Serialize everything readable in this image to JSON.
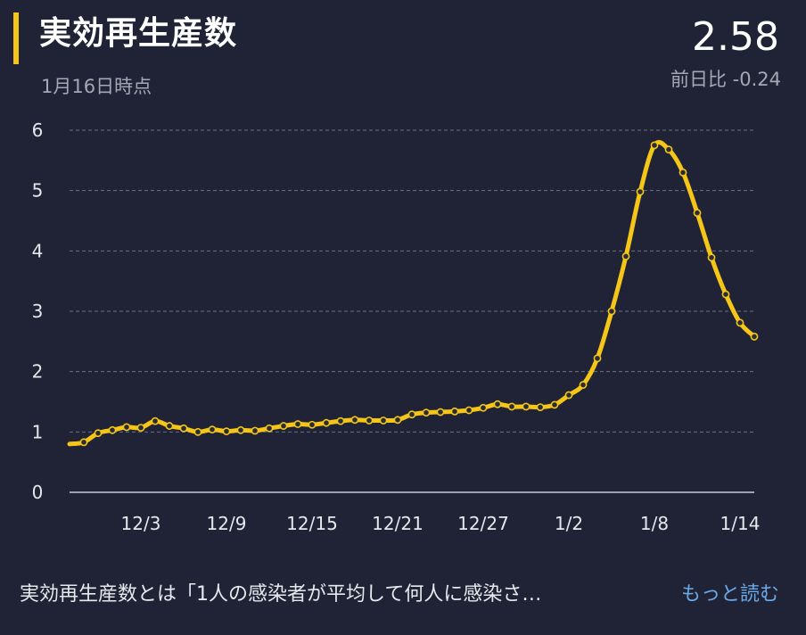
{
  "header": {
    "title": "実効再生産数",
    "as_of": "1月16日時点",
    "value": "2.58",
    "delta": "前日比 -0.24"
  },
  "footer": {
    "description": "実効再生産数とは「1人の感染者が平均して何人に感染さ…",
    "more_link": "もっと読む"
  },
  "colors": {
    "background": "#1f2335",
    "accent": "#f5c518",
    "grid": "#6b7080",
    "link": "#6aa8e8"
  },
  "chart_data": {
    "type": "line",
    "y_ticks": [
      "0",
      "1",
      "2",
      "3",
      "4",
      "5",
      "6"
    ],
    "ylim": [
      0,
      6
    ],
    "x_tick_labels": [
      "12/3",
      "12/9",
      "12/15",
      "12/21",
      "12/27",
      "1/2",
      "1/8",
      "1/14"
    ],
    "x_tick_index": [
      5,
      11,
      17,
      23,
      29,
      35,
      41,
      47
    ],
    "grid": true,
    "series": [
      {
        "values": [
          0.8,
          0.83,
          0.98,
          1.03,
          1.08,
          1.07,
          1.18,
          1.1,
          1.06,
          1.0,
          1.04,
          1.01,
          1.03,
          1.02,
          1.06,
          1.1,
          1.13,
          1.12,
          1.15,
          1.18,
          1.2,
          1.19,
          1.19,
          1.2,
          1.29,
          1.32,
          1.33,
          1.34,
          1.36,
          1.4,
          1.46,
          1.42,
          1.42,
          1.41,
          1.45,
          1.61,
          1.78,
          2.22,
          3.0,
          3.91,
          4.98,
          5.75,
          5.68,
          5.3,
          4.63,
          3.89,
          3.28,
          2.81,
          2.58
        ]
      }
    ]
  }
}
